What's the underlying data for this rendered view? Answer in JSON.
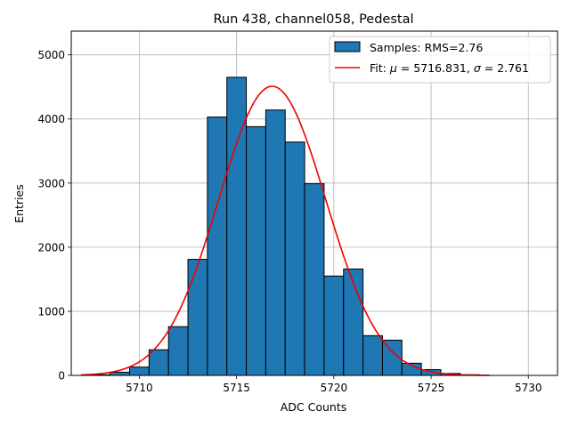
{
  "chart_data": {
    "type": "bar",
    "title": "Run 438, channel058, Pedestal",
    "xlabel": "ADC Counts",
    "ylabel": "Entries",
    "xlim": [
      5706.5,
      5731.5
    ],
    "ylim": [
      0,
      5370
    ],
    "grid": true,
    "legend_position": "top-right",
    "xticks": [
      5710,
      5715,
      5720,
      5725,
      5730
    ],
    "yticks": [
      0,
      1000,
      2000,
      3000,
      4000,
      5000
    ],
    "bin_width": 1,
    "bins": [
      {
        "center": 5708,
        "value": 10
      },
      {
        "center": 5709,
        "value": 50
      },
      {
        "center": 5710,
        "value": 130
      },
      {
        "center": 5711,
        "value": 400
      },
      {
        "center": 5712,
        "value": 760
      },
      {
        "center": 5713,
        "value": 1810
      },
      {
        "center": 5714,
        "value": 4030
      },
      {
        "center": 5715,
        "value": 4650
      },
      {
        "center": 5716,
        "value": 3880
      },
      {
        "center": 5717,
        "value": 4140
      },
      {
        "center": 5718,
        "value": 3640
      },
      {
        "center": 5719,
        "value": 2990
      },
      {
        "center": 5720,
        "value": 1550
      },
      {
        "center": 5721,
        "value": 1660
      },
      {
        "center": 5722,
        "value": 620
      },
      {
        "center": 5723,
        "value": 550
      },
      {
        "center": 5724,
        "value": 190
      },
      {
        "center": 5725,
        "value": 90
      },
      {
        "center": 5726,
        "value": 30
      },
      {
        "center": 5727,
        "value": 10
      }
    ],
    "fit": {
      "mu": 5716.831,
      "sigma": 2.761,
      "amplitude": 4510,
      "x_range": [
        5707,
        5728
      ],
      "color": "#ee0000"
    },
    "bar_color": "#1f77b4",
    "legend": {
      "hist_label": "Samples: RMS=2.76",
      "fit_label_prefix": "Fit: ",
      "mu_symbol": "μ",
      "mu_text": " = 5716.831, ",
      "sigma_symbol": "σ",
      "sigma_text": " = 2.761"
    }
  }
}
